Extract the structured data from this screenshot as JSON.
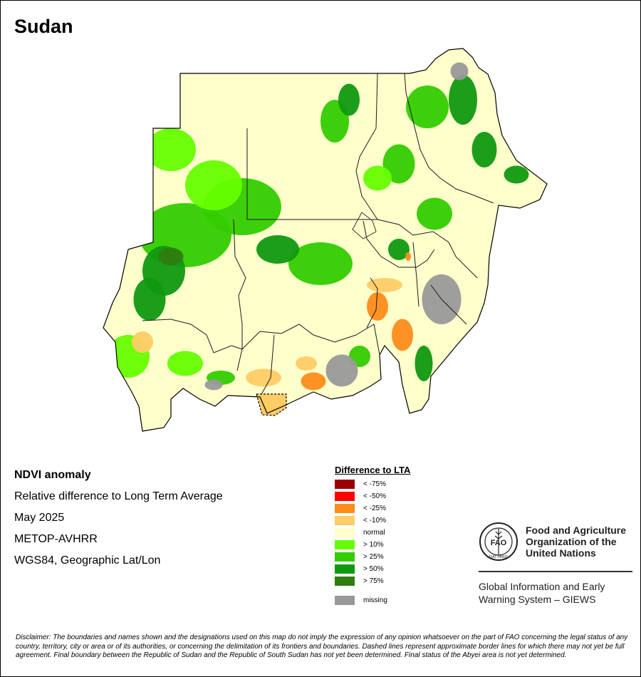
{
  "title": "Sudan",
  "info": {
    "heading": "NDVI anomaly",
    "subtitle": "Relative difference to Long Term Average",
    "date": "May 2025",
    "sensor": "METOP-AVHRR",
    "projection": "WGS84, Geographic Lat/Lon"
  },
  "legend": {
    "title": "Difference to LTA",
    "items": [
      {
        "label": "< -75%",
        "color": "#990000"
      },
      {
        "label": "< -50%",
        "color": "#ff0000"
      },
      {
        "label": "< -25%",
        "color": "#ff8c1a"
      },
      {
        "label": "< -10%",
        "color": "#ffcc66"
      },
      {
        "label": "normal",
        "color": "#ffffcc"
      },
      {
        "label": "> 10%",
        "color": "#66ff00"
      },
      {
        "label": "> 25%",
        "color": "#33cc00"
      },
      {
        "label": "> 50%",
        "color": "#109910"
      },
      {
        "label": "> 75%",
        "color": "#2e7d0f"
      }
    ],
    "missing": {
      "label": "missing",
      "color": "#999999"
    }
  },
  "org": {
    "name_line1": "Food and Agriculture",
    "name_line2": "Organization of the",
    "name_line3": "United Nations",
    "logo_text": "FAO",
    "logo_motto": "FIAT PANIS",
    "system_line1": "Global Information and Early",
    "system_line2": "Warning System – GIEWS"
  },
  "disclaimer": "Disclaimer: The boundaries and names shown and the designations used on this map do not imply the expression of any opinion whatsoever on the part of FAO concerning the legal status of any country, territory, city or area or of its authorities, or concerning the delimitation of its frontiers and boundaries. Dashed lines represent approximate border lines for which there may not yet be full agreement.  Final boundary between the Republic of Sudan and the Republic of South Sudan has not yet been determined. Final status of the Abyei area is not yet determined."
}
